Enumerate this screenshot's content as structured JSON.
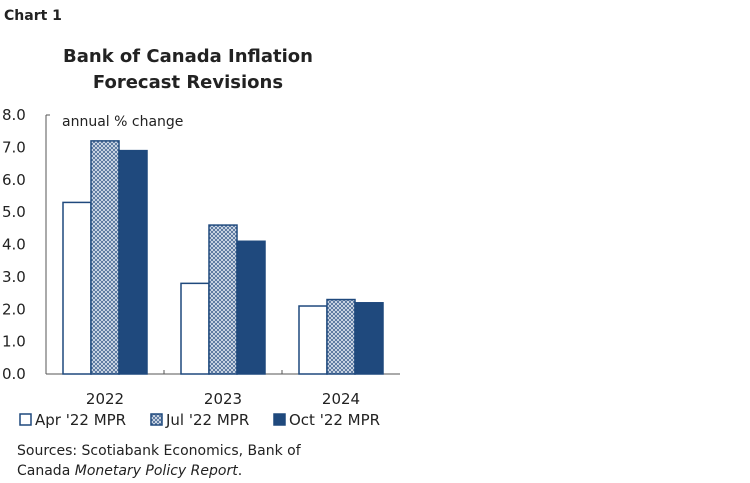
{
  "chart_label": "Chart 1",
  "chart_data": {
    "type": "bar",
    "title": [
      "Bank of Canada Inflation",
      "Forecast Revisions"
    ],
    "ylabel": "annual % change",
    "xlabel": "",
    "ylim": [
      0,
      8
    ],
    "yticks": [
      "0.0",
      "1.0",
      "2.0",
      "3.0",
      "4.0",
      "5.0",
      "6.0",
      "7.0",
      "8.0"
    ],
    "categories": [
      "2022",
      "2023",
      "2024"
    ],
    "series": [
      {
        "name": "Apr '22 MPR",
        "values": [
          5.3,
          2.8,
          2.1
        ],
        "style": "outline",
        "color": "#1f497d"
      },
      {
        "name": "Jul '22 MPR",
        "values": [
          7.2,
          4.6,
          2.3
        ],
        "style": "hatched",
        "color": "#1f497d"
      },
      {
        "name": "Oct '22 MPR",
        "values": [
          6.9,
          4.1,
          2.2
        ],
        "style": "solid",
        "color": "#1f497d"
      }
    ],
    "legend_position": "bottom",
    "grid": false
  },
  "sources": {
    "prefix": "Sources: Scotiabank Economics, Bank of",
    "line2_plain": "Canada ",
    "line2_italic": "Monetary Policy Report",
    "line2_end": "."
  }
}
